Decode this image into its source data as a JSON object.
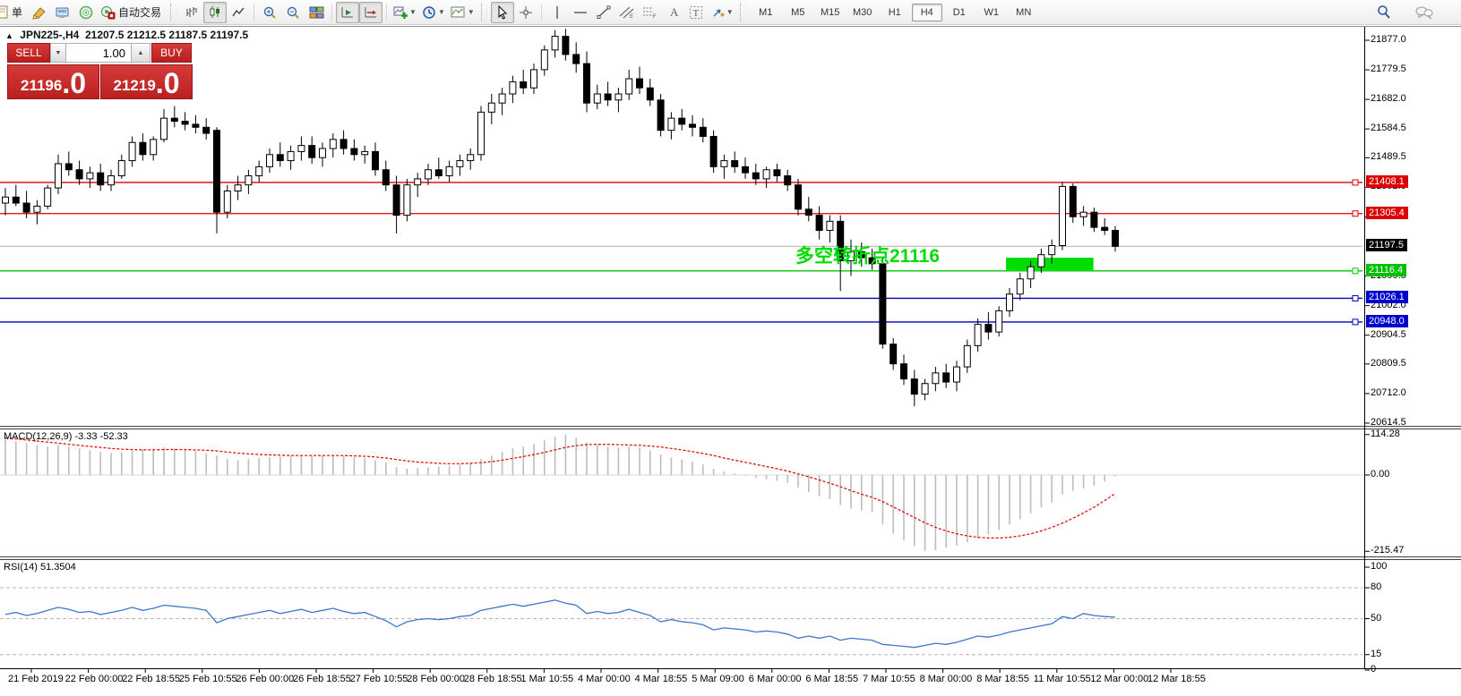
{
  "toolbar": {
    "new_order_label": "单",
    "autotrading_label": "自动交易",
    "timeframes": [
      "M1",
      "M5",
      "M15",
      "M30",
      "H1",
      "H4",
      "D1",
      "W1",
      "MN"
    ],
    "active_timeframe": "H4"
  },
  "ui": {
    "title": {
      "collapse_glyph": "▲",
      "symbol": "JPN225-,H4",
      "ohlc": "21207.5 21212.5 21187.5 21197.5"
    },
    "trade_panel": {
      "sell_label": "SELL",
      "buy_label": "BUY",
      "volume": "1.00",
      "spin_down_glyph": "▼",
      "spin_up_glyph": "▲",
      "sell_price_main": "21196",
      "sell_price_big": ".0",
      "buy_price_main": "21219",
      "buy_price_big": ".0"
    }
  },
  "chart_data": {
    "type": "candlestick",
    "symbol": "JPN225-",
    "timeframe": "H4",
    "ohlc_header": {
      "open": 21207.5,
      "high": 21212.5,
      "low": 21187.5,
      "close": 21197.5
    },
    "price_axis_ticks": [
      21877.0,
      21779.5,
      21682.0,
      21584.5,
      21489.5,
      21392.0,
      21294.5,
      21099.5,
      21002.0,
      20904.5,
      20809.5,
      20712.0,
      20614.5
    ],
    "time_axis_labels": [
      "21 Feb 2019",
      "22 Feb 00:00",
      "22 Feb 18:55",
      "25 Feb 10:55",
      "26 Feb 00:00",
      "26 Feb 18:55",
      "27 Feb 10:55",
      "28 Feb 00:00",
      "28 Feb 18:55",
      "1 Mar 10:55",
      "4 Mar 00:00",
      "4 Mar 18:55",
      "5 Mar 09:00",
      "6 Mar 00:00",
      "6 Mar 18:55",
      "7 Mar 10:55",
      "8 Mar 00:00",
      "8 Mar 18:55",
      "11 Mar 10:55",
      "12 Mar 00:00",
      "12 Mar 18:55"
    ],
    "horizontal_levels": [
      {
        "price": 21408.1,
        "color": "#e00000",
        "label_bg": "#dd0000",
        "anchor": true
      },
      {
        "price": 21305.4,
        "color": "#e00000",
        "label_bg": "#dd0000",
        "anchor": true
      },
      {
        "price": 21197.5,
        "color": "#c0c0c0",
        "label_bg": "#000000",
        "anchor": false
      },
      {
        "price": 21116.4,
        "color": "#00cc00",
        "label_bg": "#00c000",
        "anchor": true
      },
      {
        "price": 21026.1,
        "color": "#0000c0",
        "label_bg": "#0000cc",
        "anchor": true
      },
      {
        "price": 20948.0,
        "color": "#0000c0",
        "label_bg": "#0000cc",
        "anchor": true
      }
    ],
    "annotation": {
      "text": "多空转折点21116",
      "color": "#00dd00"
    },
    "highlight_rect": {
      "from_bar": 95,
      "to_bar": 102.6,
      "price_top": 21160,
      "price_bottom": 21119,
      "color": "#00dd00"
    },
    "candles": [
      [
        21340,
        21390,
        21300,
        21360
      ],
      [
        21360,
        21400,
        21330,
        21340
      ],
      [
        21340,
        21380,
        21290,
        21310
      ],
      [
        21310,
        21350,
        21270,
        21330
      ],
      [
        21330,
        21400,
        21320,
        21390
      ],
      [
        21390,
        21500,
        21370,
        21470
      ],
      [
        21470,
        21510,
        21430,
        21450
      ],
      [
        21450,
        21480,
        21400,
        21420
      ],
      [
        21420,
        21460,
        21390,
        21440
      ],
      [
        21440,
        21470,
        21380,
        21400
      ],
      [
        21400,
        21450,
        21380,
        21430
      ],
      [
        21430,
        21500,
        21420,
        21480
      ],
      [
        21480,
        21560,
        21460,
        21540
      ],
      [
        21540,
        21570,
        21480,
        21500
      ],
      [
        21500,
        21560,
        21480,
        21550
      ],
      [
        21550,
        21650,
        21540,
        21620
      ],
      [
        21620,
        21660,
        21590,
        21610
      ],
      [
        21610,
        21640,
        21580,
        21600
      ],
      [
        21600,
        21630,
        21570,
        21590
      ],
      [
        21590,
        21620,
        21550,
        21570
      ],
      [
        21580,
        21590,
        21240,
        21310
      ],
      [
        21310,
        21400,
        21290,
        21380
      ],
      [
        21380,
        21430,
        21350,
        21400
      ],
      [
        21400,
        21450,
        21370,
        21430
      ],
      [
        21430,
        21480,
        21410,
        21460
      ],
      [
        21460,
        21520,
        21440,
        21500
      ],
      [
        21500,
        21540,
        21460,
        21480
      ],
      [
        21480,
        21530,
        21450,
        21510
      ],
      [
        21510,
        21560,
        21480,
        21530
      ],
      [
        21530,
        21560,
        21470,
        21490
      ],
      [
        21490,
        21540,
        21460,
        21520
      ],
      [
        21520,
        21570,
        21490,
        21550
      ],
      [
        21550,
        21580,
        21500,
        21520
      ],
      [
        21520,
        21550,
        21480,
        21500
      ],
      [
        21500,
        21530,
        21470,
        21510
      ],
      [
        21510,
        21540,
        21430,
        21450
      ],
      [
        21450,
        21480,
        21380,
        21400
      ],
      [
        21400,
        21430,
        21240,
        21300
      ],
      [
        21300,
        21420,
        21280,
        21400
      ],
      [
        21400,
        21440,
        21360,
        21420
      ],
      [
        21420,
        21470,
        21400,
        21450
      ],
      [
        21450,
        21490,
        21420,
        21430
      ],
      [
        21430,
        21480,
        21410,
        21460
      ],
      [
        21460,
        21500,
        21430,
        21480
      ],
      [
        21480,
        21520,
        21450,
        21500
      ],
      [
        21500,
        21660,
        21480,
        21640
      ],
      [
        21640,
        21700,
        21600,
        21670
      ],
      [
        21670,
        21720,
        21630,
        21700
      ],
      [
        21700,
        21760,
        21670,
        21740
      ],
      [
        21740,
        21780,
        21700,
        21720
      ],
      [
        21720,
        21800,
        21700,
        21780
      ],
      [
        21780,
        21860,
        21760,
        21845
      ],
      [
        21845,
        21910,
        21820,
        21890
      ],
      [
        21890,
        21915,
        21810,
        21830
      ],
      [
        21830,
        21870,
        21770,
        21800
      ],
      [
        21800,
        21840,
        21640,
        21670
      ],
      [
        21670,
        21730,
        21650,
        21700
      ],
      [
        21700,
        21740,
        21660,
        21680
      ],
      [
        21680,
        21720,
        21640,
        21700
      ],
      [
        21700,
        21780,
        21680,
        21750
      ],
      [
        21750,
        21790,
        21700,
        21720
      ],
      [
        21720,
        21750,
        21660,
        21680
      ],
      [
        21680,
        21700,
        21560,
        21580
      ],
      [
        21580,
        21640,
        21550,
        21620
      ],
      [
        21620,
        21650,
        21580,
        21600
      ],
      [
        21600,
        21630,
        21560,
        21590
      ],
      [
        21590,
        21620,
        21540,
        21560
      ],
      [
        21560,
        21580,
        21440,
        21460
      ],
      [
        21460,
        21500,
        21420,
        21480
      ],
      [
        21480,
        21510,
        21440,
        21460
      ],
      [
        21460,
        21490,
        21420,
        21440
      ],
      [
        21440,
        21470,
        21400,
        21420
      ],
      [
        21420,
        21460,
        21390,
        21450
      ],
      [
        21450,
        21470,
        21410,
        21430
      ],
      [
        21430,
        21450,
        21380,
        21400
      ],
      [
        21400,
        21420,
        21300,
        21320
      ],
      [
        21320,
        21360,
        21280,
        21300
      ],
      [
        21300,
        21330,
        21220,
        21250
      ],
      [
        21250,
        21300,
        21210,
        21280
      ],
      [
        21280,
        21300,
        21050,
        21150
      ],
      [
        21150,
        21220,
        21100,
        21180
      ],
      [
        21180,
        21210,
        21130,
        21160
      ],
      [
        21160,
        21190,
        21120,
        21140
      ],
      [
        21140,
        21160,
        20860,
        20875
      ],
      [
        20875,
        20895,
        20790,
        20810
      ],
      [
        20810,
        20840,
        20740,
        20760
      ],
      [
        20760,
        20790,
        20670,
        20710
      ],
      [
        20710,
        20760,
        20690,
        20745
      ],
      [
        20745,
        20800,
        20720,
        20780
      ],
      [
        20780,
        20810,
        20730,
        20750
      ],
      [
        20750,
        20820,
        20720,
        20800
      ],
      [
        20800,
        20890,
        20780,
        20870
      ],
      [
        20870,
        20960,
        20850,
        20940
      ],
      [
        20940,
        20980,
        20890,
        20915
      ],
      [
        20915,
        21000,
        20900,
        20985
      ],
      [
        20985,
        21060,
        20965,
        21040
      ],
      [
        21040,
        21110,
        21020,
        21090
      ],
      [
        21090,
        21150,
        21060,
        21130
      ],
      [
        21130,
        21190,
        21110,
        21170
      ],
      [
        21170,
        21220,
        21140,
        21200
      ],
      [
        21200,
        21410,
        21185,
        21395
      ],
      [
        21395,
        21405,
        21275,
        21295
      ],
      [
        21295,
        21330,
        21265,
        21310
      ],
      [
        21310,
        21325,
        21245,
        21260
      ],
      [
        21260,
        21290,
        21235,
        21250
      ],
      [
        21250,
        21265,
        21180,
        21197.5
      ]
    ],
    "macd": {
      "label": "MACD(12,26,9) -3.33 -52.33",
      "last_main": -3.33,
      "last_signal": -52.33,
      "axis_ticks": [
        114.28,
        0.0,
        -215.47
      ],
      "histogram": [
        100,
        95,
        90,
        85,
        80,
        85,
        80,
        75,
        70,
        65,
        62,
        65,
        70,
        72,
        75,
        78,
        75,
        72,
        68,
        62,
        55,
        45,
        42,
        45,
        48,
        50,
        52,
        55,
        56,
        54,
        55,
        57,
        55,
        50,
        48,
        42,
        35,
        22,
        18,
        20,
        22,
        24,
        26,
        30,
        34,
        45,
        55,
        65,
        75,
        80,
        88,
        98,
        108,
        114.28,
        105,
        92,
        85,
        80,
        78,
        80,
        78,
        70,
        58,
        50,
        44,
        38,
        30,
        18,
        10,
        4,
        -2,
        -8,
        -12,
        -16,
        -22,
        -35,
        -48,
        -60,
        -68,
        -85,
        -95,
        -100,
        -105,
        -140,
        -165,
        -185,
        -200,
        -215.47,
        -212,
        -205,
        -200,
        -190,
        -178,
        -168,
        -155,
        -140,
        -125,
        -108,
        -92,
        -78,
        -55,
        -45,
        -38,
        -30,
        -18,
        -3.33
      ],
      "signal": [
        105,
        102,
        99,
        96,
        93,
        90,
        87,
        84,
        81,
        78,
        75,
        73,
        72,
        71,
        71,
        72,
        72,
        72,
        71,
        70,
        68,
        65,
        62,
        60,
        58,
        57,
        56,
        55,
        55,
        55,
        55,
        55,
        55,
        54,
        53,
        51,
        48,
        44,
        40,
        37,
        35,
        33,
        32,
        32,
        33,
        35,
        38,
        42,
        47,
        52,
        58,
        64,
        71,
        78,
        83,
        86,
        87,
        87,
        86,
        85,
        84,
        82,
        79,
        75,
        71,
        66,
        61,
        55,
        48,
        42,
        36,
        30,
        24,
        18,
        11,
        3,
        -5,
        -14,
        -23,
        -33,
        -44,
        -54,
        -63,
        -75,
        -90,
        -105,
        -120,
        -135,
        -148,
        -158,
        -166,
        -172,
        -176,
        -178,
        -178,
        -176,
        -172,
        -166,
        -158,
        -148,
        -136,
        -122,
        -107,
        -91,
        -72,
        -52.33
      ]
    },
    "rsi": {
      "label": "RSI(14) 51.3504",
      "last_value": 51.3504,
      "axis_ticks": [
        100,
        80,
        50,
        15,
        0
      ],
      "levels": [
        80,
        50,
        15
      ],
      "values": [
        54,
        56,
        53,
        55,
        58,
        61,
        59,
        56,
        57,
        54,
        56,
        58,
        61,
        58,
        60,
        63,
        62,
        61,
        60,
        58,
        46,
        50,
        52,
        54,
        56,
        58,
        55,
        57,
        59,
        56,
        58,
        60,
        57,
        55,
        56,
        52,
        48,
        42,
        47,
        49,
        50,
        49,
        50,
        52,
        53,
        58,
        60,
        62,
        64,
        62,
        64,
        66,
        68,
        65,
        63,
        55,
        57,
        55,
        56,
        59,
        56,
        53,
        47,
        49,
        47,
        46,
        44,
        39,
        41,
        40,
        39,
        37,
        38,
        37,
        35,
        31,
        33,
        31,
        33,
        29,
        31,
        30,
        29,
        25,
        24,
        23,
        22,
        24,
        26,
        25,
        27,
        30,
        33,
        32,
        34,
        37,
        39,
        41,
        43,
        45,
        52,
        50,
        55,
        53,
        52,
        51.35
      ]
    }
  }
}
